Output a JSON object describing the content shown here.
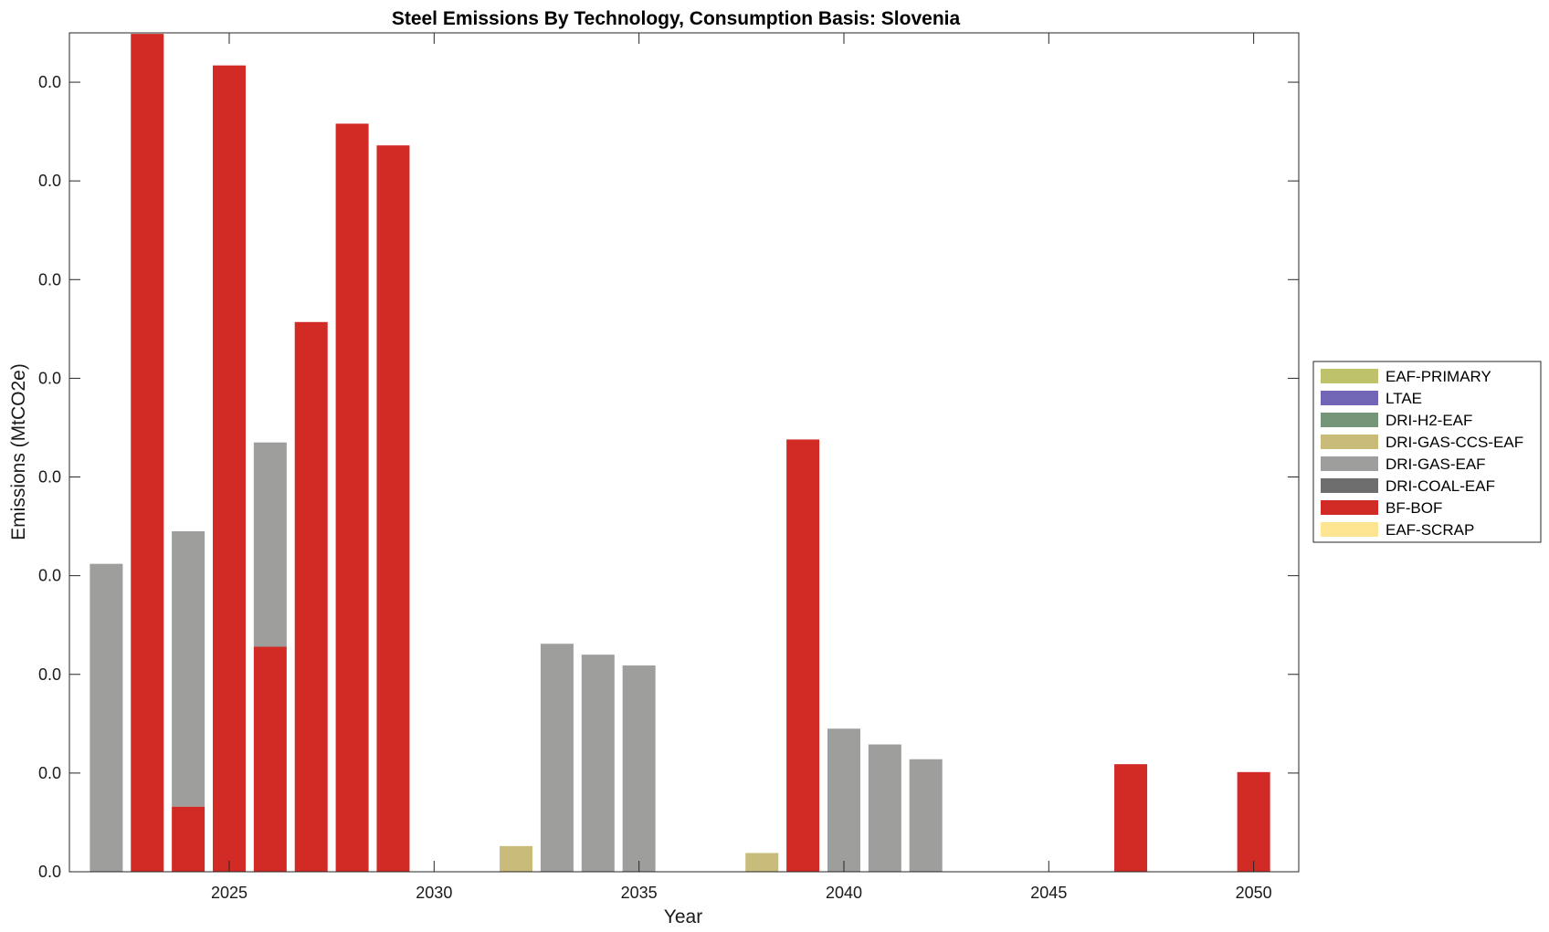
{
  "chart_data": {
    "type": "bar",
    "stacked": true,
    "title": "Steel Emissions By Technology, Consumption Basis: Slovenia",
    "xlabel": "Year",
    "ylabel": "Emissions (MtCO2e)",
    "x": [
      2022,
      2023,
      2024,
      2025,
      2026,
      2027,
      2028,
      2029,
      2030,
      2031,
      2032,
      2033,
      2034,
      2035,
      2036,
      2037,
      2038,
      2039,
      2040,
      2041,
      2042,
      2043,
      2044,
      2045,
      2046,
      2047,
      2048,
      2049,
      2050
    ],
    "xlim": [
      2021.1,
      2051.1
    ],
    "ylim": [
      0,
      0.0085
    ],
    "xticks": [
      2025,
      2030,
      2035,
      2040,
      2045,
      2050
    ],
    "yticks": [
      0,
      0.001,
      0.002,
      0.003,
      0.004,
      0.005,
      0.006,
      0.007,
      0.008
    ],
    "ytick_labels": [
      "0.0",
      "0.0",
      "0.0",
      "0.0",
      "0.0",
      "0.0",
      "0.0",
      "0.0",
      "0.0"
    ],
    "grid": false,
    "legend_position": "right",
    "series": [
      {
        "name": "EAF-SCRAP",
        "color": "#FDE592",
        "values": [
          0,
          0,
          0,
          0,
          0,
          0,
          0,
          0,
          0,
          0,
          0,
          0,
          0,
          0,
          0,
          0,
          0,
          0,
          0,
          0,
          0,
          0,
          0,
          0,
          0,
          0,
          0,
          0,
          0
        ]
      },
      {
        "name": "BF-BOF",
        "color": "#D22B25",
        "values": [
          0,
          0.00849,
          0.00066,
          0.00817,
          0.00228,
          0.00557,
          0.00758,
          0.00736,
          0,
          0,
          0,
          0,
          0,
          0,
          0,
          0,
          0,
          0.00438,
          0,
          0,
          0,
          0,
          0,
          0,
          0,
          0.00109,
          0,
          0,
          0.00101
        ]
      },
      {
        "name": "DRI-COAL-EAF",
        "color": "#6E6E6E",
        "values": [
          0,
          0,
          0,
          0,
          0,
          0,
          0,
          0,
          0,
          0,
          0,
          0,
          0,
          0,
          0,
          0,
          0,
          0,
          0,
          0,
          0,
          0,
          0,
          0,
          0,
          0,
          0,
          0,
          0
        ]
      },
      {
        "name": "DRI-GAS-EAF",
        "color": "#9E9E9C",
        "values": [
          0.00312,
          0,
          0.00279,
          0,
          0.00207,
          0,
          0,
          0,
          0,
          0,
          0,
          0.00231,
          0.0022,
          0.00209,
          0,
          0,
          0,
          0,
          0.00145,
          0.00129,
          0.00114,
          0,
          0,
          0,
          0,
          0,
          0,
          0,
          0
        ]
      },
      {
        "name": "DRI-GAS-CCS-EAF",
        "color": "#C9BC7A",
        "values": [
          0,
          0,
          0,
          0,
          0,
          0,
          0,
          0,
          0,
          0,
          0.00026,
          0,
          0,
          0,
          0,
          0,
          0.00019,
          0,
          0,
          0,
          0,
          0,
          0,
          0,
          0,
          0,
          0,
          0,
          0
        ]
      },
      {
        "name": "DRI-H2-EAF",
        "color": "#76967A",
        "values": [
          0,
          0,
          0,
          0,
          0,
          0,
          0,
          0,
          0,
          0,
          0,
          0,
          0,
          0,
          0,
          0,
          0,
          0,
          0,
          0,
          0,
          0,
          0,
          0,
          0,
          0,
          0,
          0,
          0
        ]
      },
      {
        "name": "LTAE",
        "color": "#7066B5",
        "values": [
          0,
          0,
          0,
          0,
          0,
          0,
          0,
          0,
          0,
          0,
          0,
          0,
          0,
          0,
          0,
          0,
          0,
          0,
          0,
          0,
          0,
          0,
          0,
          0,
          0,
          0,
          0,
          0,
          0
        ]
      },
      {
        "name": "EAF-PRIMARY",
        "color": "#BEC36B",
        "values": [
          0,
          0,
          0,
          0,
          0,
          0,
          0,
          0,
          0,
          0,
          0,
          0,
          0,
          0,
          0,
          0,
          0,
          0,
          0,
          0,
          0,
          0,
          0,
          0,
          0,
          0,
          0,
          0,
          0
        ]
      }
    ],
    "legend": [
      "EAF-PRIMARY",
      "LTAE",
      "DRI-H2-EAF",
      "DRI-GAS-CCS-EAF",
      "DRI-GAS-EAF",
      "DRI-COAL-EAF",
      "BF-BOF",
      "EAF-SCRAP"
    ]
  }
}
